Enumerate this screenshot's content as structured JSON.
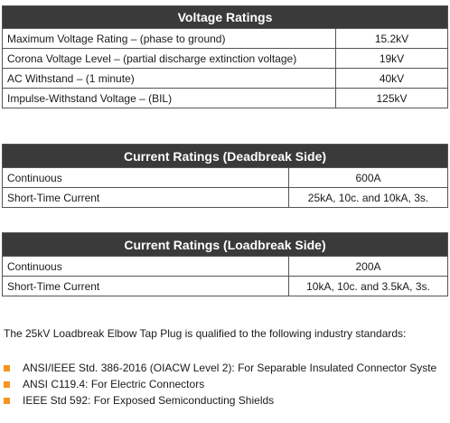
{
  "voltage": {
    "title": "Voltage Ratings",
    "rows": [
      {
        "label": "Maximum Voltage Rating – (phase to ground)",
        "value": "15.2kV"
      },
      {
        "label": "Corona Voltage Level – (partial discharge extinction voltage)",
        "value": "19kV"
      },
      {
        "label": "AC Withstand – (1 minute)",
        "value": "40kV"
      },
      {
        "label": "Impulse-Withstand Voltage – (BIL)",
        "value": "125kV"
      }
    ]
  },
  "deadbreak": {
    "title": "Current Ratings (Deadbreak Side)",
    "rows": [
      {
        "label": "Continuous",
        "value": "600A"
      },
      {
        "label": "Short-Time Current",
        "value": "25kA, 10c. and 10kA, 3s."
      }
    ]
  },
  "loadbreak": {
    "title": "Current Ratings (Loadbreak Side)",
    "rows": [
      {
        "label": "Continuous",
        "value": "200A"
      },
      {
        "label": "Short-Time Current",
        "value": "10kA, 10c. and 3.5kA, 3s."
      }
    ]
  },
  "intro": "The 25kV Loadbreak Elbow Tap Plug is qualified to the following industry standards:",
  "standards": [
    "ANSI/IEEE Std. 386-2016 (OIACW Level 2): For Separable Insulated Connector Syste",
    "ANSI C119.4: For Electric Connectors",
    "IEEE Std 592: For Exposed Semiconducting Shields"
  ],
  "colors": {
    "header_bg": "#3a3a3a",
    "bullet": "#f7941d",
    "border": "#555555"
  }
}
